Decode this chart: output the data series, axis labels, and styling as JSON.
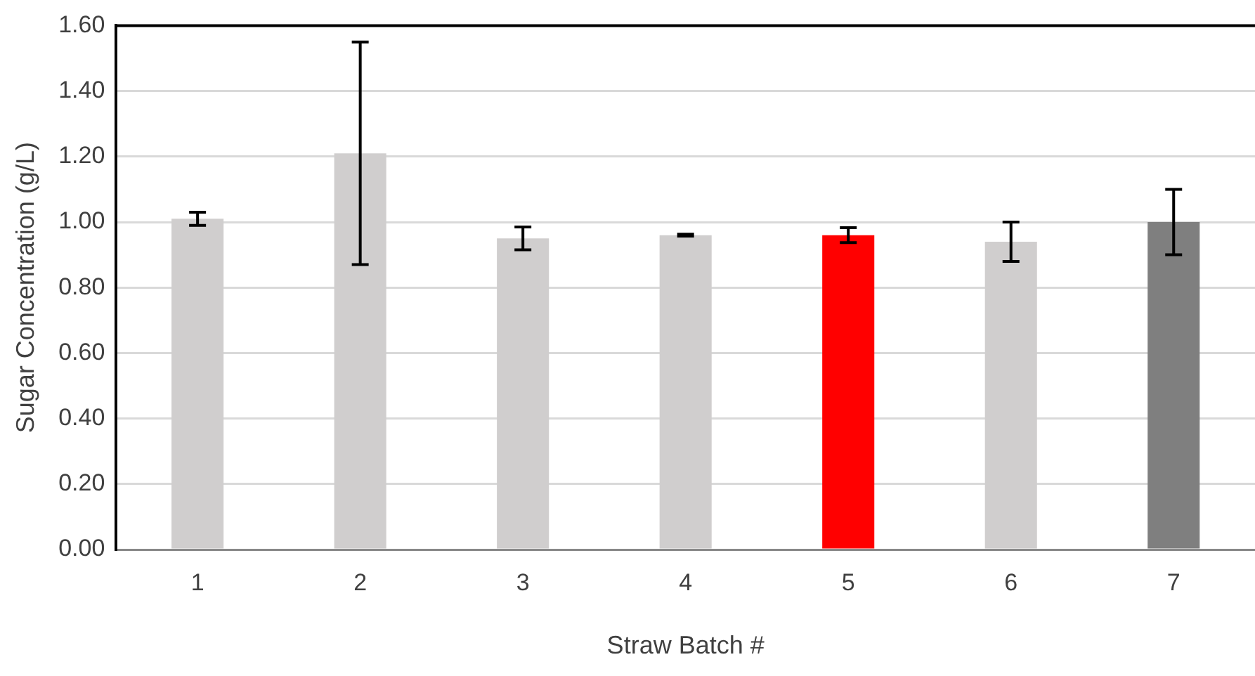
{
  "chart_data": {
    "type": "bar",
    "xlabel": "Straw Batch #",
    "ylabel": "Sugar Concentration (g/L)",
    "categories": [
      "1",
      "2",
      "3",
      "4",
      "5",
      "6",
      "7"
    ],
    "values": [
      1.01,
      1.21,
      0.95,
      0.96,
      0.96,
      0.94,
      1.0
    ],
    "errors": [
      0.02,
      0.34,
      0.035,
      0.003,
      0.023,
      0.06,
      0.1
    ],
    "colors": [
      "#d0cece",
      "#d0cece",
      "#d0cece",
      "#d0cece",
      "#ff0000",
      "#d0cece",
      "#7f7f7f"
    ],
    "ylim": [
      0,
      1.6
    ],
    "yticks": [
      {
        "value": 0,
        "label": "0.00"
      },
      {
        "value": 0.2,
        "label": "0.20"
      },
      {
        "value": 0.4,
        "label": "0.40"
      },
      {
        "value": 0.6,
        "label": "0.60"
      },
      {
        "value": 0.8,
        "label": "0.80"
      },
      {
        "value": 1,
        "label": "1.00"
      },
      {
        "value": 1.2,
        "label": "1.20"
      },
      {
        "value": 1.4,
        "label": "1.40"
      },
      {
        "value": 1.6,
        "label": "1.60"
      }
    ],
    "grid": "y",
    "legend": false
  }
}
